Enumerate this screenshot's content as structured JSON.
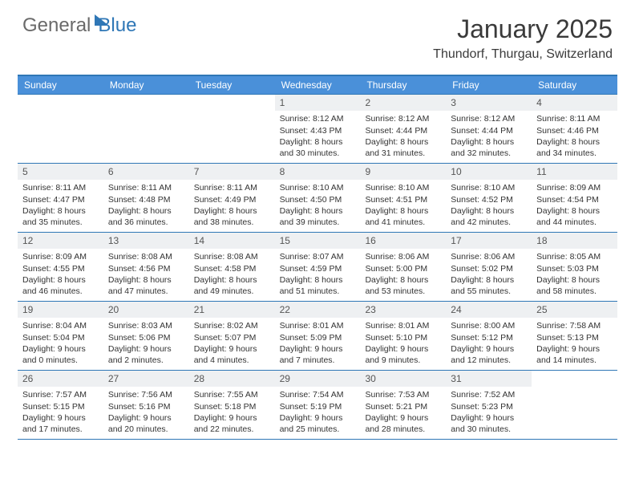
{
  "brand": {
    "part1": "General",
    "part2": "Blue"
  },
  "title": "January 2025",
  "location": "Thundorf, Thurgau, Switzerland",
  "colors": {
    "accent": "#2f77b6",
    "header_bg": "#4a90d9",
    "daynum_bg": "#eef0f2"
  },
  "dayHeaders": [
    "Sunday",
    "Monday",
    "Tuesday",
    "Wednesday",
    "Thursday",
    "Friday",
    "Saturday"
  ],
  "weeks": [
    [
      {
        "num": "",
        "sunrise": "",
        "sunset": "",
        "daylight": ""
      },
      {
        "num": "",
        "sunrise": "",
        "sunset": "",
        "daylight": ""
      },
      {
        "num": "",
        "sunrise": "",
        "sunset": "",
        "daylight": ""
      },
      {
        "num": "1",
        "sunrise": "Sunrise: 8:12 AM",
        "sunset": "Sunset: 4:43 PM",
        "daylight": "Daylight: 8 hours and 30 minutes."
      },
      {
        "num": "2",
        "sunrise": "Sunrise: 8:12 AM",
        "sunset": "Sunset: 4:44 PM",
        "daylight": "Daylight: 8 hours and 31 minutes."
      },
      {
        "num": "3",
        "sunrise": "Sunrise: 8:12 AM",
        "sunset": "Sunset: 4:44 PM",
        "daylight": "Daylight: 8 hours and 32 minutes."
      },
      {
        "num": "4",
        "sunrise": "Sunrise: 8:11 AM",
        "sunset": "Sunset: 4:46 PM",
        "daylight": "Daylight: 8 hours and 34 minutes."
      }
    ],
    [
      {
        "num": "5",
        "sunrise": "Sunrise: 8:11 AM",
        "sunset": "Sunset: 4:47 PM",
        "daylight": "Daylight: 8 hours and 35 minutes."
      },
      {
        "num": "6",
        "sunrise": "Sunrise: 8:11 AM",
        "sunset": "Sunset: 4:48 PM",
        "daylight": "Daylight: 8 hours and 36 minutes."
      },
      {
        "num": "7",
        "sunrise": "Sunrise: 8:11 AM",
        "sunset": "Sunset: 4:49 PM",
        "daylight": "Daylight: 8 hours and 38 minutes."
      },
      {
        "num": "8",
        "sunrise": "Sunrise: 8:10 AM",
        "sunset": "Sunset: 4:50 PM",
        "daylight": "Daylight: 8 hours and 39 minutes."
      },
      {
        "num": "9",
        "sunrise": "Sunrise: 8:10 AM",
        "sunset": "Sunset: 4:51 PM",
        "daylight": "Daylight: 8 hours and 41 minutes."
      },
      {
        "num": "10",
        "sunrise": "Sunrise: 8:10 AM",
        "sunset": "Sunset: 4:52 PM",
        "daylight": "Daylight: 8 hours and 42 minutes."
      },
      {
        "num": "11",
        "sunrise": "Sunrise: 8:09 AM",
        "sunset": "Sunset: 4:54 PM",
        "daylight": "Daylight: 8 hours and 44 minutes."
      }
    ],
    [
      {
        "num": "12",
        "sunrise": "Sunrise: 8:09 AM",
        "sunset": "Sunset: 4:55 PM",
        "daylight": "Daylight: 8 hours and 46 minutes."
      },
      {
        "num": "13",
        "sunrise": "Sunrise: 8:08 AM",
        "sunset": "Sunset: 4:56 PM",
        "daylight": "Daylight: 8 hours and 47 minutes."
      },
      {
        "num": "14",
        "sunrise": "Sunrise: 8:08 AM",
        "sunset": "Sunset: 4:58 PM",
        "daylight": "Daylight: 8 hours and 49 minutes."
      },
      {
        "num": "15",
        "sunrise": "Sunrise: 8:07 AM",
        "sunset": "Sunset: 4:59 PM",
        "daylight": "Daylight: 8 hours and 51 minutes."
      },
      {
        "num": "16",
        "sunrise": "Sunrise: 8:06 AM",
        "sunset": "Sunset: 5:00 PM",
        "daylight": "Daylight: 8 hours and 53 minutes."
      },
      {
        "num": "17",
        "sunrise": "Sunrise: 8:06 AM",
        "sunset": "Sunset: 5:02 PM",
        "daylight": "Daylight: 8 hours and 55 minutes."
      },
      {
        "num": "18",
        "sunrise": "Sunrise: 8:05 AM",
        "sunset": "Sunset: 5:03 PM",
        "daylight": "Daylight: 8 hours and 58 minutes."
      }
    ],
    [
      {
        "num": "19",
        "sunrise": "Sunrise: 8:04 AM",
        "sunset": "Sunset: 5:04 PM",
        "daylight": "Daylight: 9 hours and 0 minutes."
      },
      {
        "num": "20",
        "sunrise": "Sunrise: 8:03 AM",
        "sunset": "Sunset: 5:06 PM",
        "daylight": "Daylight: 9 hours and 2 minutes."
      },
      {
        "num": "21",
        "sunrise": "Sunrise: 8:02 AM",
        "sunset": "Sunset: 5:07 PM",
        "daylight": "Daylight: 9 hours and 4 minutes."
      },
      {
        "num": "22",
        "sunrise": "Sunrise: 8:01 AM",
        "sunset": "Sunset: 5:09 PM",
        "daylight": "Daylight: 9 hours and 7 minutes."
      },
      {
        "num": "23",
        "sunrise": "Sunrise: 8:01 AM",
        "sunset": "Sunset: 5:10 PM",
        "daylight": "Daylight: 9 hours and 9 minutes."
      },
      {
        "num": "24",
        "sunrise": "Sunrise: 8:00 AM",
        "sunset": "Sunset: 5:12 PM",
        "daylight": "Daylight: 9 hours and 12 minutes."
      },
      {
        "num": "25",
        "sunrise": "Sunrise: 7:58 AM",
        "sunset": "Sunset: 5:13 PM",
        "daylight": "Daylight: 9 hours and 14 minutes."
      }
    ],
    [
      {
        "num": "26",
        "sunrise": "Sunrise: 7:57 AM",
        "sunset": "Sunset: 5:15 PM",
        "daylight": "Daylight: 9 hours and 17 minutes."
      },
      {
        "num": "27",
        "sunrise": "Sunrise: 7:56 AM",
        "sunset": "Sunset: 5:16 PM",
        "daylight": "Daylight: 9 hours and 20 minutes."
      },
      {
        "num": "28",
        "sunrise": "Sunrise: 7:55 AM",
        "sunset": "Sunset: 5:18 PM",
        "daylight": "Daylight: 9 hours and 22 minutes."
      },
      {
        "num": "29",
        "sunrise": "Sunrise: 7:54 AM",
        "sunset": "Sunset: 5:19 PM",
        "daylight": "Daylight: 9 hours and 25 minutes."
      },
      {
        "num": "30",
        "sunrise": "Sunrise: 7:53 AM",
        "sunset": "Sunset: 5:21 PM",
        "daylight": "Daylight: 9 hours and 28 minutes."
      },
      {
        "num": "31",
        "sunrise": "Sunrise: 7:52 AM",
        "sunset": "Sunset: 5:23 PM",
        "daylight": "Daylight: 9 hours and 30 minutes."
      },
      {
        "num": "",
        "sunrise": "",
        "sunset": "",
        "daylight": ""
      }
    ]
  ]
}
